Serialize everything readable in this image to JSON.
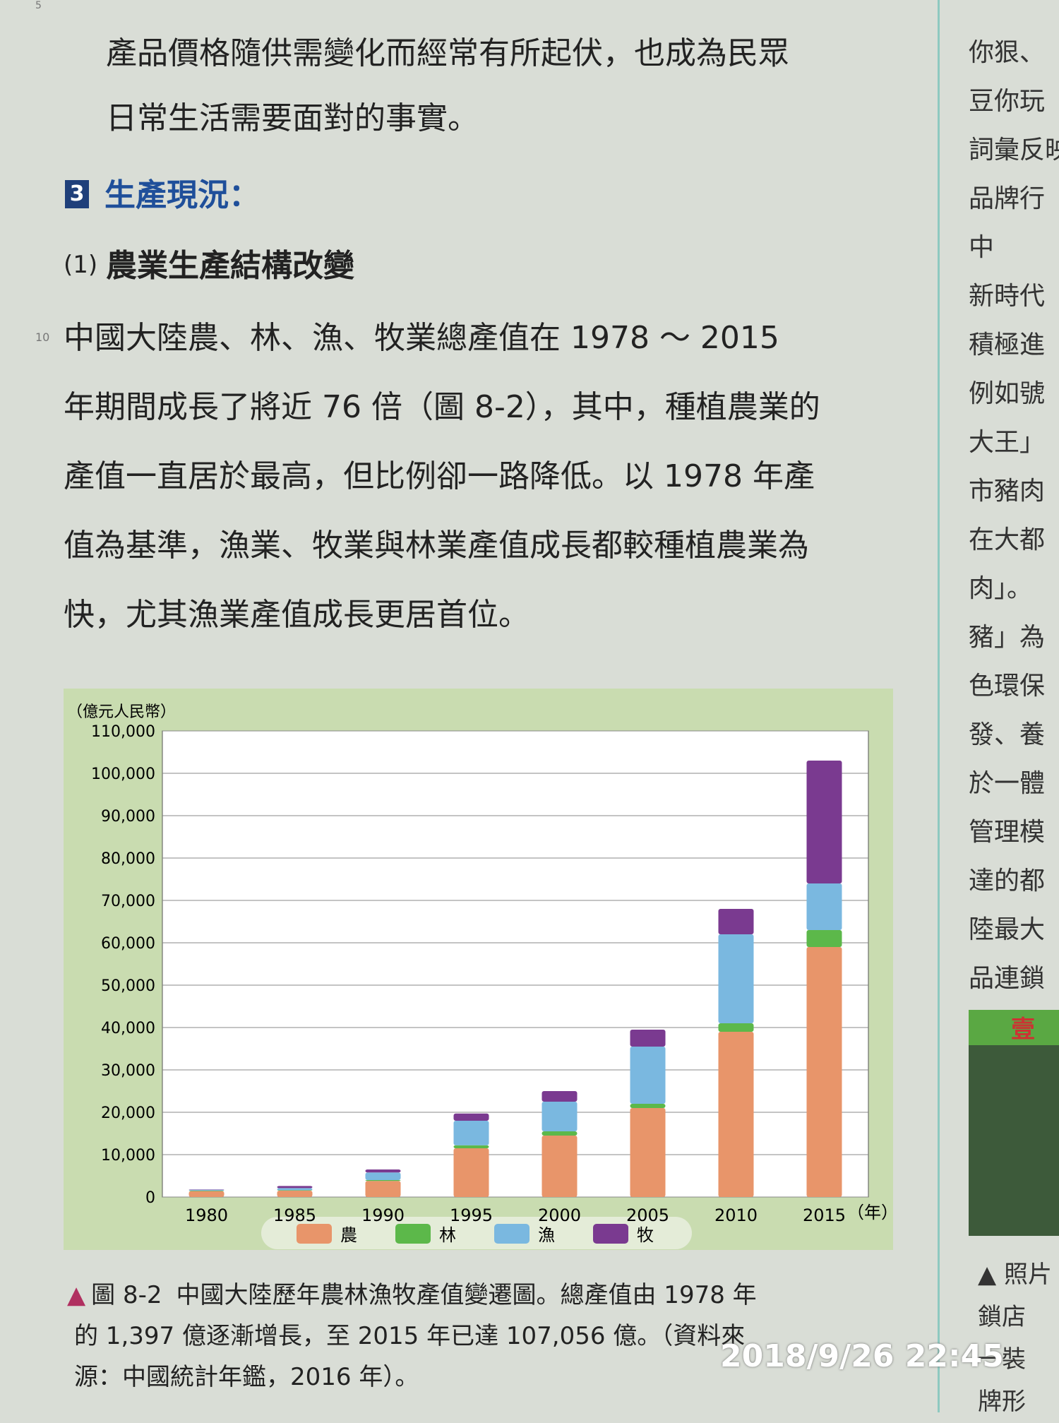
{
  "page_number_top": "5",
  "section": {
    "number": "3",
    "title": "生產現況："
  },
  "intro_lines": [
    "產品價格隨供需變化而經常有所起伏，也成為民眾",
    "日常生活需要面對的事實。"
  ],
  "subsection": {
    "number": "(1)",
    "title": "農業生產結構改變"
  },
  "line_number": "10",
  "paragraph_lines": [
    "中國大陸農、林、漁、牧業總產值在 1978 ～ 2015",
    "年期間成長了將近 76 倍（圖 8-2），其中，種植農業的",
    "產值一直居於最高，但比例卻一路降低。以 1978 年產",
    "值為基準，漁業、牧業與林業產值成長都較種植農業為",
    "快，尤其漁業產值成長更居首位。"
  ],
  "chart_data": {
    "type": "stacked_bar",
    "y_label": "（億元人民幣）",
    "x_label": "（年）",
    "categories": [
      "1980",
      "1985",
      "1990",
      "1995",
      "2000",
      "2005",
      "2010",
      "2015"
    ],
    "series": [
      {
        "name": "農",
        "color": "#e8956a",
        "values": [
          1400,
          1500,
          3800,
          11500,
          14500,
          21000,
          39000,
          59000
        ]
      },
      {
        "name": "林",
        "color": "#5cb84a",
        "values": [
          100,
          100,
          200,
          700,
          1000,
          1000,
          2000,
          4000
        ]
      },
      {
        "name": "漁",
        "color": "#7ab8e0",
        "values": [
          200,
          500,
          1800,
          5800,
          7000,
          13500,
          21000,
          11000
        ]
      },
      {
        "name": "牧",
        "color": "#7a3a90",
        "values": [
          100,
          500,
          700,
          1700,
          2500,
          4000,
          6000,
          29000
        ]
      }
    ],
    "ylim": [
      0,
      110000
    ],
    "yticks": [
      0,
      {
        "value": 10000,
        "label": "10,000"
      },
      {
        "value": 20000,
        "label": "20,000"
      },
      {
        "value": 30000,
        "label": "30,000"
      },
      {
        "value": 40000,
        "label": "40,000"
      },
      {
        "value": 50000,
        "label": "50,000"
      },
      {
        "value": 60000,
        "label": "60,000"
      },
      {
        "value": 70000,
        "label": "70,000"
      },
      {
        "value": 80000,
        "label": "80,000"
      },
      {
        "value": 90000,
        "label": "90,000"
      },
      {
        "value": 100000,
        "label": "100,000"
      },
      {
        "value": 110000,
        "label": "110,000"
      }
    ],
    "grid": true
  },
  "caption": {
    "marker": "▲",
    "label": "圖 8-2",
    "lines": [
      "中國大陸歷年農林漁牧產值變遷圖。總產值由 1978 年",
      "的 1,397 億逐漸增長，至 2015 年已達 107,056 億。（資料來",
      "源：中國統計年鑑，2016 年）。"
    ]
  },
  "side_lines": [
    "你狠、",
    "豆你玩",
    "詞彙反映",
    "品牌行",
    "中",
    "新時代",
    "積極進",
    "例如號",
    "大王」",
    "市豬肉",
    "在大都",
    "肉」。",
    "豬」為",
    "色環保",
    "發、養",
    "於一體",
    "管理模",
    "達的都",
    "陸最大",
    "品連鎖"
  ],
  "side_box_title": "壹",
  "side_caption_lines": [
    "▲ 照片",
    "鎖店",
    "一裝",
    "牌形"
  ],
  "timestamp": "2018/9/26  22:45"
}
